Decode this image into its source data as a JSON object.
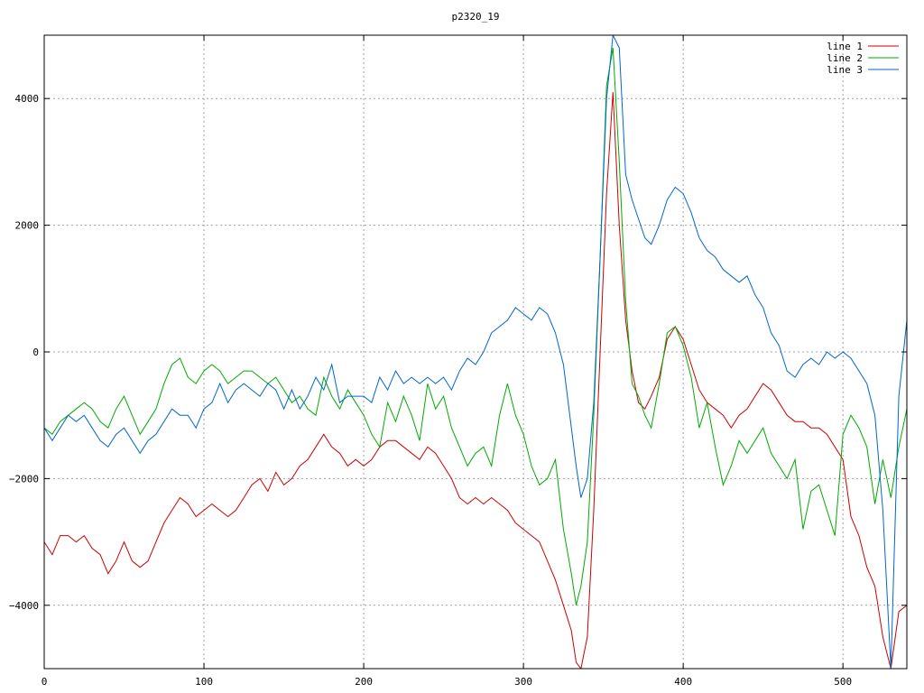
{
  "chart_data": {
    "type": "line",
    "title": "p2320_19",
    "xlabel": "",
    "ylabel": "",
    "xlim": [
      0,
      540
    ],
    "ylim": [
      -5000,
      5000
    ],
    "xticks": [
      0,
      100,
      200,
      300,
      400,
      500
    ],
    "yticks": [
      -4000,
      -2000,
      0,
      2000,
      4000
    ],
    "xtick_labels": [
      "0",
      "100",
      "200",
      "300",
      "400",
      "500"
    ],
    "ytick_labels": [
      "−4000",
      "−2000",
      "0",
      "2000",
      "4000"
    ],
    "grid": true,
    "legend_position": "top-right",
    "series": [
      {
        "name": "line 1",
        "color": "#cc0000",
        "x": [
          0,
          5,
          10,
          15,
          20,
          25,
          30,
          35,
          40,
          45,
          50,
          55,
          60,
          65,
          70,
          75,
          80,
          85,
          90,
          95,
          100,
          105,
          110,
          115,
          120,
          125,
          130,
          135,
          140,
          145,
          150,
          155,
          160,
          165,
          170,
          175,
          180,
          185,
          190,
          195,
          200,
          205,
          210,
          215,
          220,
          225,
          230,
          235,
          240,
          245,
          250,
          255,
          260,
          265,
          270,
          275,
          280,
          285,
          290,
          295,
          300,
          305,
          310,
          315,
          320,
          325,
          330,
          333,
          336,
          340,
          344,
          348,
          352,
          356,
          360,
          364,
          368,
          372,
          376,
          380,
          385,
          390,
          395,
          400,
          405,
          410,
          415,
          420,
          425,
          430,
          435,
          440,
          445,
          450,
          455,
          460,
          465,
          470,
          475,
          480,
          485,
          490,
          495,
          500,
          505,
          510,
          515,
          520,
          525,
          530,
          535,
          540
        ],
        "values": [
          -3000,
          -3200,
          -2900,
          -2900,
          -3000,
          -2900,
          -3100,
          -3200,
          -3500,
          -3300,
          -3000,
          -3300,
          -3400,
          -3300,
          -3000,
          -2700,
          -2500,
          -2300,
          -2400,
          -2600,
          -2500,
          -2400,
          -2500,
          -2600,
          -2500,
          -2300,
          -2100,
          -2000,
          -2200,
          -1900,
          -2100,
          -2000,
          -1800,
          -1700,
          -1500,
          -1300,
          -1500,
          -1600,
          -1800,
          -1700,
          -1800,
          -1700,
          -1500,
          -1400,
          -1400,
          -1500,
          -1600,
          -1700,
          -1500,
          -1600,
          -1800,
          -2000,
          -2300,
          -2400,
          -2300,
          -2400,
          -2300,
          -2400,
          -2500,
          -2700,
          -2800,
          -2900,
          -3000,
          -3300,
          -3600,
          -4000,
          -4400,
          -4900,
          -5000,
          -4500,
          -2500,
          0,
          2500,
          4100,
          2000,
          500,
          -300,
          -800,
          -900,
          -700,
          -400,
          200,
          400,
          200,
          -200,
          -600,
          -800,
          -900,
          -1000,
          -1200,
          -1000,
          -900,
          -700,
          -500,
          -600,
          -800,
          -1000,
          -1100,
          -1100,
          -1200,
          -1200,
          -1300,
          -1500,
          -1700,
          -2600,
          -2900,
          -3400,
          -3700,
          -4500,
          -5000,
          -4100,
          -4000
        ]
      },
      {
        "name": "line 2",
        "color": "#00aa00",
        "x": [
          0,
          5,
          10,
          15,
          20,
          25,
          30,
          35,
          40,
          45,
          50,
          55,
          60,
          65,
          70,
          75,
          80,
          85,
          90,
          95,
          100,
          105,
          110,
          115,
          120,
          125,
          130,
          135,
          140,
          145,
          150,
          155,
          160,
          165,
          170,
          175,
          180,
          185,
          190,
          195,
          200,
          205,
          210,
          215,
          220,
          225,
          230,
          235,
          240,
          245,
          250,
          255,
          260,
          265,
          270,
          275,
          280,
          285,
          290,
          295,
          300,
          305,
          310,
          315,
          320,
          325,
          330,
          333,
          336,
          340,
          344,
          348,
          352,
          356,
          360,
          364,
          368,
          372,
          376,
          380,
          385,
          390,
          395,
          400,
          405,
          410,
          415,
          420,
          425,
          430,
          435,
          440,
          445,
          450,
          455,
          460,
          465,
          470,
          475,
          480,
          485,
          490,
          495,
          500,
          505,
          510,
          515,
          520,
          525,
          530,
          535,
          540
        ],
        "values": [
          -1200,
          -1300,
          -1100,
          -1000,
          -900,
          -800,
          -900,
          -1100,
          -1200,
          -900,
          -700,
          -1000,
          -1300,
          -1100,
          -900,
          -500,
          -200,
          -100,
          -400,
          -500,
          -300,
          -200,
          -300,
          -500,
          -400,
          -300,
          -300,
          -400,
          -500,
          -400,
          -600,
          -800,
          -700,
          -900,
          -1000,
          -400,
          -700,
          -900,
          -600,
          -800,
          -1000,
          -1300,
          -1500,
          -800,
          -1100,
          -700,
          -1000,
          -1400,
          -500,
          -900,
          -700,
          -1200,
          -1500,
          -1800,
          -1600,
          -1500,
          -1800,
          -1000,
          -500,
          -1000,
          -1300,
          -1800,
          -2100,
          -2000,
          -1700,
          -2800,
          -3500,
          -4000,
          -3700,
          -3000,
          -1000,
          1500,
          4200,
          4800,
          3000,
          800,
          -500,
          -700,
          -1000,
          -1200,
          -500,
          300,
          400,
          100,
          -400,
          -1200,
          -800,
          -1500,
          -2100,
          -1800,
          -1400,
          -1600,
          -1400,
          -1200,
          -1600,
          -1800,
          -2000,
          -1700,
          -2800,
          -2200,
          -2100,
          -2500,
          -2900,
          -1300,
          -1000,
          -1200,
          -1500,
          -2400,
          -1700,
          -2300,
          -1500,
          -900
        ]
      },
      {
        "name": "line 3",
        "color": "#0066cc",
        "x": [
          0,
          5,
          10,
          15,
          20,
          25,
          30,
          35,
          40,
          45,
          50,
          55,
          60,
          65,
          70,
          75,
          80,
          85,
          90,
          95,
          100,
          105,
          110,
          115,
          120,
          125,
          130,
          135,
          140,
          145,
          150,
          155,
          160,
          165,
          170,
          175,
          180,
          185,
          190,
          195,
          200,
          205,
          210,
          215,
          220,
          225,
          230,
          235,
          240,
          245,
          250,
          255,
          260,
          265,
          270,
          275,
          280,
          285,
          290,
          295,
          300,
          305,
          310,
          315,
          320,
          325,
          330,
          333,
          336,
          340,
          344,
          348,
          352,
          356,
          360,
          364,
          368,
          372,
          376,
          380,
          385,
          390,
          395,
          400,
          405,
          410,
          415,
          420,
          425,
          430,
          435,
          440,
          445,
          450,
          455,
          460,
          465,
          470,
          475,
          480,
          485,
          490,
          495,
          500,
          505,
          510,
          515,
          520,
          525,
          530,
          535,
          540
        ],
        "values": [
          -1200,
          -1400,
          -1200,
          -1000,
          -1100,
          -1000,
          -1200,
          -1400,
          -1500,
          -1300,
          -1200,
          -1400,
          -1600,
          -1400,
          -1300,
          -1100,
          -900,
          -1000,
          -1000,
          -1200,
          -900,
          -800,
          -500,
          -800,
          -600,
          -500,
          -600,
          -700,
          -500,
          -600,
          -900,
          -600,
          -900,
          -700,
          -400,
          -600,
          -200,
          -800,
          -700,
          -700,
          -700,
          -800,
          -400,
          -600,
          -300,
          -500,
          -400,
          -500,
          -400,
          -500,
          -400,
          -600,
          -300,
          -100,
          -200,
          0,
          300,
          400,
          500,
          700,
          600,
          500,
          700,
          600,
          300,
          -200,
          -1200,
          -1800,
          -2300,
          -2000,
          -800,
          1500,
          4000,
          5000,
          4800,
          2800,
          2400,
          2100,
          1800,
          1700,
          2000,
          2400,
          2600,
          2500,
          2200,
          1800,
          1600,
          1500,
          1300,
          1200,
          1100,
          1200,
          900,
          700,
          300,
          100,
          -300,
          -400,
          -200,
          -100,
          -200,
          0,
          -100,
          0,
          -100,
          -300,
          -500,
          -1000,
          -2500,
          -5000,
          -700,
          500
        ]
      }
    ]
  }
}
